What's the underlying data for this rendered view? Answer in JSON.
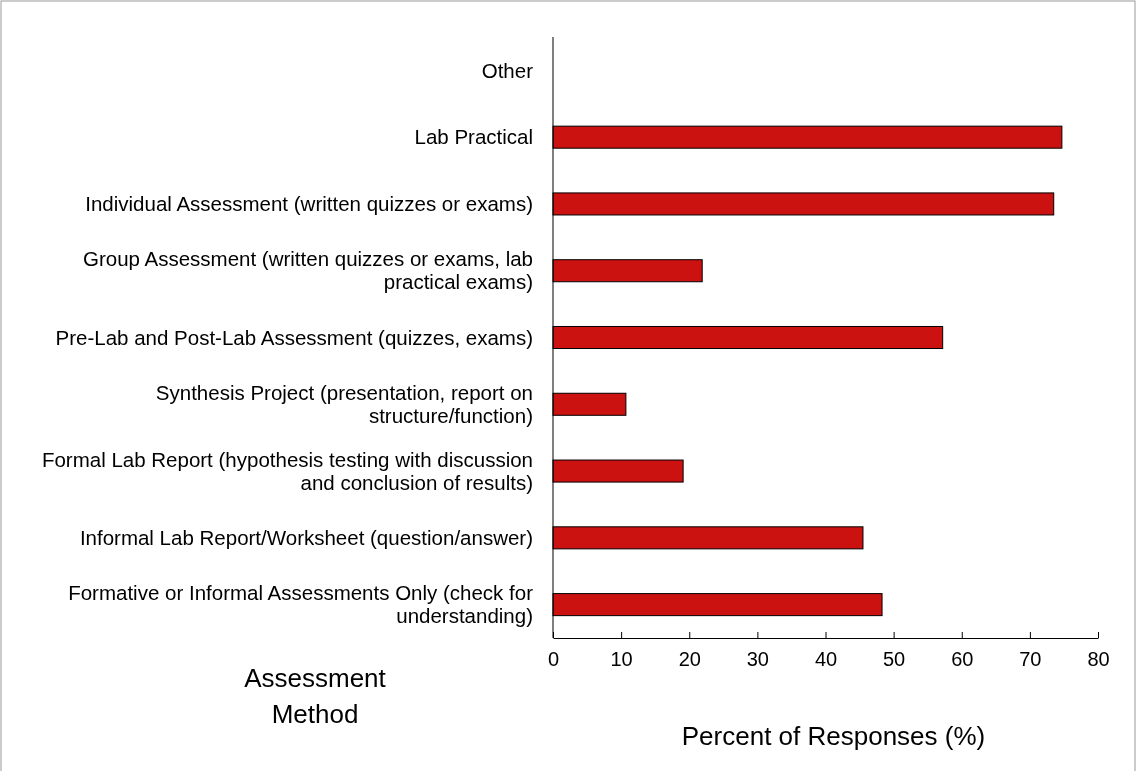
{
  "chart_data": {
    "type": "bar",
    "orientation": "horizontal",
    "xlabel": "Percent of Responses (%)",
    "ylabel": "Assessment Method",
    "categories": [
      "Other",
      "Lab Practical",
      "Individual Assessment (written quizzes or exams)",
      "Group Assessment (written quizzes or exams, lab practical exams)",
      "Pre-Lab and Post-Lab Assessment (quizzes, exams)",
      "Synthesis Project (presentation, report on structure/function)",
      "Formal Lab Report (hypothesis testing with discussion and conclusion of results)",
      "Informal Lab Report/Worksheet (question/answer)",
      "Formative or Informal Assessments Only (check for understanding)"
    ],
    "values": [
      0,
      74.7,
      73.5,
      21.9,
      57.2,
      10.7,
      19.1,
      45.5,
      48.3
    ],
    "color": "#cc1111",
    "xlim": [
      0,
      80
    ],
    "xticks": [
      0,
      10,
      20,
      30,
      40,
      50,
      60,
      70,
      80
    ],
    "grid": false
  }
}
